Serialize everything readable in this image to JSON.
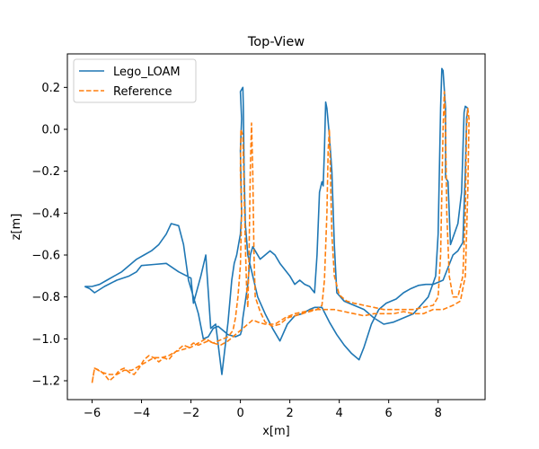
{
  "chart_data": {
    "type": "line",
    "title": "Top-View",
    "xlabel": "x[m]",
    "ylabel": "z[m]",
    "xlim": [
      -7.0,
      9.9
    ],
    "ylim": [
      -1.29,
      0.36
    ],
    "xticks": [
      -6,
      -4,
      -2,
      0,
      2,
      4,
      6,
      8
    ],
    "yticks": [
      -1.2,
      -1.0,
      -0.8,
      -0.6,
      -0.4,
      -0.2,
      0.0,
      0.2
    ],
    "grid": false,
    "legend_position": "top-left",
    "series": [
      {
        "name": "Lego_LOAM",
        "color": "#1f77b4",
        "style": "solid",
        "points": [
          [
            -6.3,
            -0.75
          ],
          [
            -6.1,
            -0.76
          ],
          [
            -5.9,
            -0.78
          ],
          [
            -5.5,
            -0.75
          ],
          [
            -5.0,
            -0.72
          ],
          [
            -4.5,
            -0.7
          ],
          [
            -4.2,
            -0.68
          ],
          [
            -4.0,
            -0.65
          ],
          [
            -3.5,
            -0.645
          ],
          [
            -3.0,
            -0.64
          ],
          [
            -2.5,
            -0.68
          ],
          [
            -2.0,
            -0.71
          ],
          [
            -1.9,
            -0.83
          ],
          [
            -1.6,
            -0.7
          ],
          [
            -1.4,
            -0.6
          ],
          [
            -1.2,
            -0.95
          ],
          [
            -1.0,
            -0.93
          ],
          [
            -0.75,
            -1.17
          ],
          [
            -0.5,
            -0.92
          ],
          [
            -0.35,
            -0.72
          ],
          [
            -0.25,
            -0.64
          ],
          [
            -0.15,
            -0.6
          ],
          [
            0.0,
            -0.5
          ],
          [
            0.05,
            -0.4
          ],
          [
            0.0,
            -0.1
          ],
          [
            0.05,
            0.05
          ],
          [
            0.0,
            0.18
          ],
          [
            0.1,
            0.2
          ],
          [
            0.12,
            0.1
          ],
          [
            0.15,
            -0.2
          ],
          [
            0.2,
            -0.45
          ],
          [
            0.3,
            -0.6
          ],
          [
            0.5,
            -0.7
          ],
          [
            0.7,
            -0.8
          ],
          [
            1.0,
            -0.88
          ],
          [
            1.3,
            -0.95
          ],
          [
            1.6,
            -1.01
          ],
          [
            1.9,
            -0.93
          ],
          [
            2.2,
            -0.89
          ],
          [
            2.5,
            -0.88
          ],
          [
            2.8,
            -0.86
          ],
          [
            3.0,
            -0.85
          ],
          [
            3.3,
            -0.85
          ],
          [
            3.6,
            -0.92
          ],
          [
            3.9,
            -0.98
          ],
          [
            4.2,
            -1.03
          ],
          [
            4.5,
            -1.07
          ],
          [
            4.8,
            -1.1
          ],
          [
            5.0,
            -1.04
          ],
          [
            5.3,
            -0.93
          ],
          [
            5.6,
            -0.86
          ],
          [
            5.9,
            -0.83
          ],
          [
            6.3,
            -0.81
          ],
          [
            6.6,
            -0.78
          ],
          [
            6.9,
            -0.76
          ],
          [
            7.2,
            -0.745
          ],
          [
            7.5,
            -0.74
          ],
          [
            7.8,
            -0.74
          ],
          [
            8.0,
            -0.73
          ],
          [
            8.2,
            -0.72
          ],
          [
            8.4,
            -0.66
          ],
          [
            8.6,
            -0.6
          ],
          [
            8.8,
            -0.58
          ],
          [
            9.0,
            -0.54
          ],
          [
            9.1,
            -0.2
          ],
          [
            9.15,
            0.05
          ],
          [
            9.2,
            0.1
          ],
          [
            9.1,
            0.11
          ],
          [
            9.05,
            0.08
          ],
          [
            8.95,
            -0.3
          ],
          [
            8.8,
            -0.45
          ],
          [
            8.5,
            -0.55
          ],
          [
            8.4,
            -0.25
          ],
          [
            8.3,
            -0.23
          ],
          [
            8.3,
            0.1
          ],
          [
            8.2,
            0.28
          ],
          [
            8.15,
            0.29
          ],
          [
            8.1,
            0.1
          ],
          [
            8.05,
            -0.2
          ],
          [
            8.0,
            -0.5
          ],
          [
            7.9,
            -0.7
          ],
          [
            7.6,
            -0.8
          ],
          [
            7.3,
            -0.84
          ],
          [
            7.0,
            -0.88
          ],
          [
            6.6,
            -0.9
          ],
          [
            6.2,
            -0.92
          ],
          [
            5.8,
            -0.93
          ],
          [
            5.4,
            -0.9
          ],
          [
            5.0,
            -0.86
          ],
          [
            4.6,
            -0.84
          ],
          [
            4.2,
            -0.82
          ],
          [
            3.9,
            -0.78
          ],
          [
            3.8,
            -0.55
          ],
          [
            3.7,
            -0.2
          ],
          [
            3.6,
            -0.03
          ],
          [
            3.5,
            0.1
          ],
          [
            3.45,
            0.13
          ],
          [
            3.4,
            -0.1
          ],
          [
            3.35,
            -0.27
          ],
          [
            3.3,
            -0.25
          ],
          [
            3.2,
            -0.3
          ],
          [
            3.1,
            -0.6
          ],
          [
            3.0,
            -0.78
          ],
          [
            2.8,
            -0.75
          ],
          [
            2.6,
            -0.74
          ],
          [
            2.4,
            -0.72
          ],
          [
            2.2,
            -0.74
          ],
          [
            2.0,
            -0.7
          ],
          [
            1.8,
            -0.67
          ],
          [
            1.6,
            -0.64
          ],
          [
            1.4,
            -0.6
          ],
          [
            1.2,
            -0.58
          ],
          [
            1.0,
            -0.6
          ],
          [
            0.8,
            -0.62
          ],
          [
            0.6,
            -0.58
          ],
          [
            0.5,
            -0.56
          ],
          [
            0.4,
            -0.6
          ],
          [
            0.3,
            -0.74
          ],
          [
            0.2,
            -0.82
          ],
          [
            0.1,
            -0.9
          ],
          [
            0.05,
            -0.96
          ],
          [
            0.0,
            -0.98
          ],
          [
            -0.2,
            -0.99
          ],
          [
            -0.5,
            -0.98
          ],
          [
            -0.7,
            -0.96
          ],
          [
            -0.9,
            -0.94
          ],
          [
            -1.1,
            -0.95
          ],
          [
            -1.3,
            -0.99
          ],
          [
            -1.5,
            -1.0
          ],
          [
            -1.7,
            -0.88
          ],
          [
            -1.9,
            -0.8
          ],
          [
            -2.1,
            -0.72
          ],
          [
            -2.3,
            -0.55
          ],
          [
            -2.5,
            -0.46
          ],
          [
            -2.8,
            -0.45
          ],
          [
            -3.0,
            -0.5
          ],
          [
            -3.3,
            -0.55
          ],
          [
            -3.6,
            -0.58
          ],
          [
            -3.9,
            -0.6
          ],
          [
            -4.2,
            -0.62
          ],
          [
            -4.5,
            -0.65
          ],
          [
            -4.8,
            -0.68
          ],
          [
            -5.1,
            -0.7
          ],
          [
            -5.4,
            -0.72
          ],
          [
            -5.7,
            -0.74
          ],
          [
            -6.0,
            -0.75
          ],
          [
            -6.3,
            -0.75
          ]
        ]
      },
      {
        "name": "Reference",
        "color": "#ff7f0e",
        "style": "dashed",
        "points": [
          [
            -6.0,
            -1.21
          ],
          [
            -5.9,
            -1.14
          ],
          [
            -5.7,
            -1.15
          ],
          [
            -5.5,
            -1.17
          ],
          [
            -5.3,
            -1.2
          ],
          [
            -5.1,
            -1.18
          ],
          [
            -4.9,
            -1.15
          ],
          [
            -4.7,
            -1.14
          ],
          [
            -4.5,
            -1.16
          ],
          [
            -4.3,
            -1.17
          ],
          [
            -4.1,
            -1.14
          ],
          [
            -3.9,
            -1.1
          ],
          [
            -3.7,
            -1.08
          ],
          [
            -3.5,
            -1.09
          ],
          [
            -3.3,
            -1.11
          ],
          [
            -3.1,
            -1.09
          ],
          [
            -2.9,
            -1.1
          ],
          [
            -2.7,
            -1.07
          ],
          [
            -2.5,
            -1.05
          ],
          [
            -2.3,
            -1.03
          ],
          [
            -2.1,
            -1.04
          ],
          [
            -1.9,
            -1.02
          ],
          [
            -1.7,
            -1.03
          ],
          [
            -1.5,
            -1.02
          ],
          [
            -1.3,
            -1.01
          ],
          [
            -1.1,
            -1.02
          ],
          [
            -0.9,
            -1.01
          ],
          [
            -0.7,
            -1.0
          ],
          [
            -0.5,
            -0.99
          ],
          [
            -0.3,
            -0.96
          ],
          [
            -0.2,
            -0.9
          ],
          [
            -0.1,
            -0.8
          ],
          [
            0.0,
            -0.65
          ],
          [
            0.05,
            -0.4
          ],
          [
            0.0,
            -0.2
          ],
          [
            0.02,
            0.0
          ],
          [
            0.1,
            -0.03
          ],
          [
            0.15,
            -0.3
          ],
          [
            0.2,
            -0.55
          ],
          [
            0.25,
            -0.75
          ],
          [
            0.3,
            -0.85
          ],
          [
            0.35,
            -0.6
          ],
          [
            0.4,
            -0.2
          ],
          [
            0.45,
            0.03
          ],
          [
            0.5,
            -0.2
          ],
          [
            0.55,
            -0.6
          ],
          [
            0.6,
            -0.8
          ],
          [
            0.8,
            -0.87
          ],
          [
            1.0,
            -0.92
          ],
          [
            1.3,
            -0.94
          ],
          [
            1.6,
            -0.93
          ],
          [
            1.9,
            -0.9
          ],
          [
            2.2,
            -0.89
          ],
          [
            2.5,
            -0.88
          ],
          [
            2.8,
            -0.87
          ],
          [
            3.1,
            -0.86
          ],
          [
            3.3,
            -0.84
          ],
          [
            3.4,
            -0.72
          ],
          [
            3.5,
            -0.4
          ],
          [
            3.55,
            -0.1
          ],
          [
            3.6,
            0.0
          ],
          [
            3.65,
            -0.25
          ],
          [
            3.7,
            -0.5
          ],
          [
            3.8,
            -0.7
          ],
          [
            4.0,
            -0.79
          ],
          [
            4.3,
            -0.82
          ],
          [
            4.6,
            -0.83
          ],
          [
            5.0,
            -0.84
          ],
          [
            5.4,
            -0.85
          ],
          [
            5.8,
            -0.86
          ],
          [
            6.2,
            -0.86
          ],
          [
            6.6,
            -0.86
          ],
          [
            7.0,
            -0.86
          ],
          [
            7.4,
            -0.85
          ],
          [
            7.8,
            -0.84
          ],
          [
            8.0,
            -0.8
          ],
          [
            8.1,
            -0.6
          ],
          [
            8.15,
            -0.3
          ],
          [
            8.2,
            0.0
          ],
          [
            8.25,
            0.18
          ],
          [
            8.3,
            0.0
          ],
          [
            8.35,
            -0.4
          ],
          [
            8.45,
            -0.7
          ],
          [
            8.6,
            -0.8
          ],
          [
            8.8,
            -0.8
          ],
          [
            9.0,
            -0.7
          ],
          [
            9.1,
            -0.4
          ],
          [
            9.15,
            0.0
          ],
          [
            9.2,
            0.1
          ],
          [
            9.25,
            0.05
          ],
          [
            9.2,
            -0.3
          ],
          [
            9.1,
            -0.7
          ],
          [
            8.9,
            -0.82
          ],
          [
            8.6,
            -0.84
          ],
          [
            8.2,
            -0.86
          ],
          [
            7.8,
            -0.86
          ],
          [
            7.4,
            -0.88
          ],
          [
            7.0,
            -0.88
          ],
          [
            6.6,
            -0.87
          ],
          [
            6.2,
            -0.88
          ],
          [
            5.8,
            -0.88
          ],
          [
            5.4,
            -0.88
          ],
          [
            5.0,
            -0.89
          ],
          [
            4.6,
            -0.88
          ],
          [
            4.2,
            -0.87
          ],
          [
            3.8,
            -0.86
          ],
          [
            3.4,
            -0.86
          ],
          [
            3.0,
            -0.86
          ],
          [
            2.6,
            -0.87
          ],
          [
            2.2,
            -0.88
          ],
          [
            1.8,
            -0.9
          ],
          [
            1.4,
            -0.93
          ],
          [
            1.0,
            -0.93
          ],
          [
            0.7,
            -0.92
          ],
          [
            0.5,
            -0.91
          ],
          [
            0.2,
            -0.94
          ],
          [
            0.0,
            -0.96
          ],
          [
            -0.2,
            -0.98
          ],
          [
            -0.5,
            -1.01
          ],
          [
            -0.8,
            -1.03
          ],
          [
            -1.1,
            -1.02
          ],
          [
            -1.4,
            -1.0
          ],
          [
            -1.7,
            -1.02
          ],
          [
            -2.0,
            -1.04
          ],
          [
            -2.3,
            -1.05
          ],
          [
            -2.6,
            -1.06
          ],
          [
            -2.9,
            -1.08
          ],
          [
            -3.2,
            -1.09
          ],
          [
            -3.5,
            -1.09
          ],
          [
            -3.8,
            -1.11
          ],
          [
            -4.1,
            -1.13
          ],
          [
            -4.4,
            -1.15
          ],
          [
            -4.7,
            -1.15
          ],
          [
            -5.0,
            -1.17
          ],
          [
            -5.3,
            -1.17
          ],
          [
            -5.6,
            -1.16
          ],
          [
            -5.9,
            -1.14
          ],
          [
            -6.0,
            -1.21
          ]
        ]
      }
    ]
  }
}
